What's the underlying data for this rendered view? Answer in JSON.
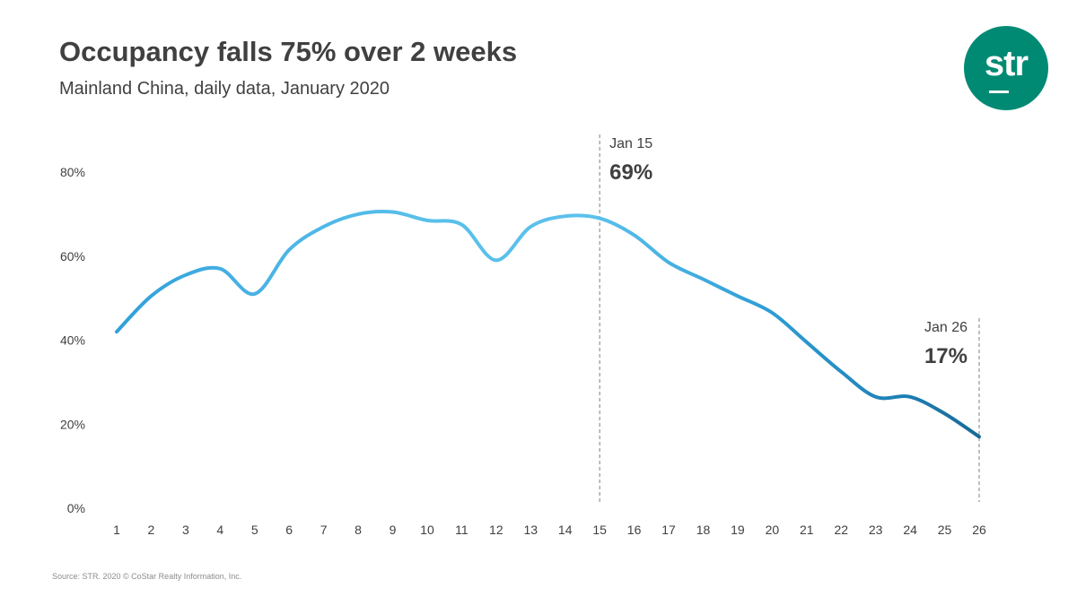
{
  "header": {
    "title": "Occupancy falls 75% over 2 weeks",
    "subtitle": "Mainland China, daily data, January 2020"
  },
  "logo": {
    "text": "str",
    "color": "#008a74"
  },
  "footer": {
    "source": "Source: STR. 2020 © CoStar Realty Information, Inc."
  },
  "chart_data": {
    "type": "line",
    "title": "Occupancy falls 75% over 2 weeks",
    "subtitle": "Mainland China, daily data, January 2020",
    "xlabel": "",
    "ylabel": "",
    "x": [
      1,
      2,
      3,
      4,
      5,
      6,
      7,
      8,
      9,
      10,
      11,
      12,
      13,
      14,
      15,
      16,
      17,
      18,
      19,
      20,
      21,
      22,
      23,
      24,
      25,
      26
    ],
    "x_tick_labels": [
      "1",
      "2",
      "3",
      "4",
      "5",
      "6",
      "7",
      "8",
      "9",
      "10",
      "11",
      "12",
      "13",
      "14",
      "15",
      "16",
      "17",
      "18",
      "19",
      "20",
      "21",
      "22",
      "23",
      "24",
      "25",
      "26"
    ],
    "series": [
      {
        "values": [
          42,
          50.5,
          55.5,
          57,
          51,
          61.5,
          67,
          70,
          70.5,
          68.5,
          67.5,
          59,
          67,
          69.5,
          69,
          65,
          58.5,
          54.5,
          50.5,
          46.5,
          39.5,
          32.5,
          26.5,
          26.5,
          22.5,
          17
        ]
      }
    ],
    "ylim": [
      0,
      80
    ],
    "y_ticks": [
      0,
      20,
      40,
      60,
      80
    ],
    "y_tick_labels": [
      "0%",
      "20%",
      "40%",
      "60%",
      "80%"
    ],
    "grid": false,
    "colors": {
      "light": "#56bde9",
      "mid": "#2b9fd8",
      "dark": "#1b6e99"
    },
    "annotations": [
      {
        "x": 15,
        "label": "Jan 15",
        "value": "69%"
      },
      {
        "x": 26,
        "label": "Jan 26",
        "value": "17%"
      }
    ]
  }
}
